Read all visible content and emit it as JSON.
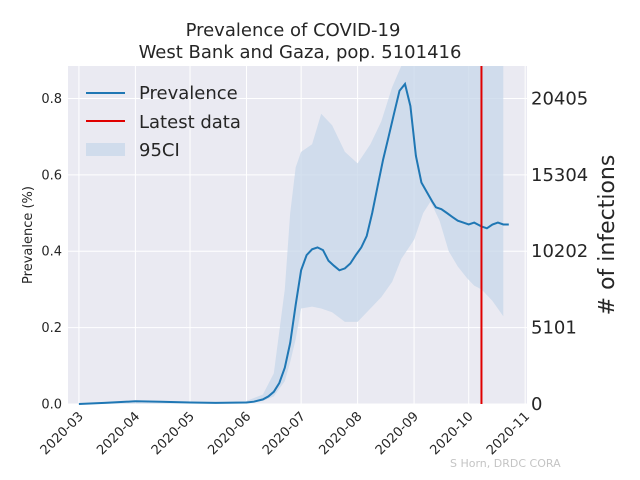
{
  "chart_data": {
    "type": "line",
    "title_line1": "Prevalence of COVID-19",
    "title_line2": "West Bank and Gaza, pop. 5101416",
    "ylabel": "Prevalence (%)",
    "ylabel_right": "# of infections",
    "ylim": [
      0,
      0.885
    ],
    "xlim": [
      "2020-02-24",
      "2020-11-02"
    ],
    "x_ticks": [
      "2020-03",
      "2020-04",
      "2020-05",
      "2020-06",
      "2020-07",
      "2020-08",
      "2020-09",
      "2020-10",
      "2020-11"
    ],
    "y_ticks": [
      "0.0",
      "0.2",
      "0.4",
      "0.6",
      "0.8"
    ],
    "y_tick_values": [
      0,
      0.2,
      0.4,
      0.6,
      0.8
    ],
    "right_ticks": [
      "0",
      "5101",
      "10202",
      "15304",
      "20405"
    ],
    "right_tick_values": [
      0,
      0.1,
      0.2,
      0.3,
      0.4
    ],
    "latest_data_date": "2020-10-08",
    "legend": [
      "Prevalence",
      "Latest data",
      "95CI"
    ],
    "legend_position": "top-left",
    "grid": true,
    "colors": {
      "prevalence": "#1f77b4",
      "latest": "#e00000",
      "ci": "#c7d7ea",
      "background": "#eaeaf2",
      "grid": "#ffffff"
    },
    "series": [
      {
        "name": "Prevalence",
        "x": [
          "2020-03-01",
          "2020-03-15",
          "2020-04-01",
          "2020-04-15",
          "2020-05-01",
          "2020-05-15",
          "2020-06-01",
          "2020-06-05",
          "2020-06-10",
          "2020-06-13",
          "2020-06-16",
          "2020-06-19",
          "2020-06-22",
          "2020-06-25",
          "2020-06-28",
          "2020-07-01",
          "2020-07-04",
          "2020-07-07",
          "2020-07-10",
          "2020-07-13",
          "2020-07-16",
          "2020-07-19",
          "2020-07-22",
          "2020-07-25",
          "2020-07-28",
          "2020-07-31",
          "2020-08-03",
          "2020-08-06",
          "2020-08-09",
          "2020-08-12",
          "2020-08-15",
          "2020-08-18",
          "2020-08-21",
          "2020-08-24",
          "2020-08-27",
          "2020-08-30",
          "2020-09-02",
          "2020-09-05",
          "2020-09-08",
          "2020-09-11",
          "2020-09-13",
          "2020-09-16",
          "2020-09-19",
          "2020-09-22",
          "2020-09-25",
          "2020-09-28",
          "2020-10-01",
          "2020-10-04",
          "2020-10-06",
          "2020-10-08",
          "2020-10-11",
          "2020-10-14",
          "2020-10-17",
          "2020-10-20",
          "2020-10-23"
        ],
        "values": [
          0.0,
          0.003,
          0.007,
          0.006,
          0.004,
          0.003,
          0.004,
          0.006,
          0.012,
          0.02,
          0.032,
          0.055,
          0.095,
          0.16,
          0.26,
          0.35,
          0.39,
          0.405,
          0.41,
          0.403,
          0.375,
          0.362,
          0.35,
          0.355,
          0.368,
          0.39,
          0.41,
          0.44,
          0.5,
          0.57,
          0.64,
          0.7,
          0.76,
          0.82,
          0.838,
          0.78,
          0.65,
          0.58,
          0.555,
          0.53,
          0.515,
          0.51,
          0.5,
          0.49,
          0.48,
          0.475,
          0.47,
          0.475,
          0.47,
          0.465,
          0.46,
          0.47,
          0.475,
          0.47,
          0.47
        ]
      }
    ],
    "ci_band": {
      "x": [
        "2020-03-01",
        "2020-05-15",
        "2020-06-01",
        "2020-06-10",
        "2020-06-16",
        "2020-06-22",
        "2020-06-25",
        "2020-06-28",
        "2020-07-01",
        "2020-07-07",
        "2020-07-12",
        "2020-07-18",
        "2020-07-25",
        "2020-08-01",
        "2020-08-08",
        "2020-08-14",
        "2020-08-20",
        "2020-08-25",
        "2020-09-01",
        "2020-09-06",
        "2020-09-10",
        "2020-09-15",
        "2020-09-20",
        "2020-09-25",
        "2020-09-30",
        "2020-10-04",
        "2020-10-08",
        "2020-10-14",
        "2020-10-20"
      ],
      "upper": [
        0.001,
        0.004,
        0.008,
        0.025,
        0.08,
        0.3,
        0.5,
        0.62,
        0.66,
        0.68,
        0.76,
        0.73,
        0.66,
        0.63,
        0.68,
        0.74,
        0.83,
        0.885,
        0.885,
        0.885,
        0.885,
        0.885,
        0.885,
        0.885,
        0.885,
        0.885,
        0.885,
        0.885,
        0.885
      ],
      "lower": [
        0.0,
        0.002,
        0.003,
        0.008,
        0.02,
        0.06,
        0.11,
        0.17,
        0.25,
        0.255,
        0.25,
        0.24,
        0.215,
        0.215,
        0.25,
        0.28,
        0.32,
        0.38,
        0.43,
        0.5,
        0.53,
        0.48,
        0.4,
        0.36,
        0.33,
        0.31,
        0.3,
        0.27,
        0.23
      ]
    }
  },
  "credit": "S Horn, DRDC CORA"
}
